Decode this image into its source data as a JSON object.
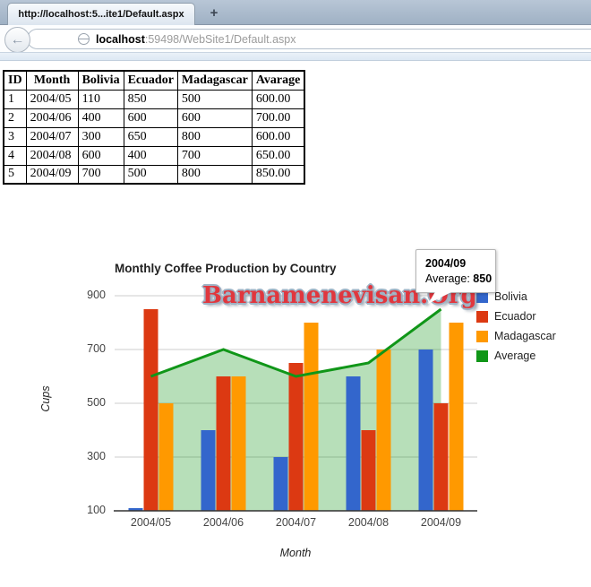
{
  "browser": {
    "tab_title": "http://localhost:5...ite1/Default.aspx",
    "new_tab_label": "+",
    "back_icon": "←",
    "url_host": "localhost",
    "url_rest": ":59498/WebSite1/Default.aspx"
  },
  "table": {
    "headers": [
      "ID",
      "Month",
      "Bolivia",
      "Ecuador",
      "Madagascar",
      "Avarage"
    ],
    "rows": [
      [
        "1",
        "2004/05",
        "110",
        "850",
        "500",
        "600.00"
      ],
      [
        "2",
        "2004/06",
        "400",
        "600",
        "600",
        "700.00"
      ],
      [
        "3",
        "2004/07",
        "300",
        "650",
        "800",
        "600.00"
      ],
      [
        "4",
        "2004/08",
        "600",
        "400",
        "700",
        "650.00"
      ],
      [
        "5",
        "2004/09",
        "700",
        "500",
        "800",
        "850.00"
      ]
    ]
  },
  "watermark_text": "Barnamenevisan.Org",
  "tooltip": {
    "title": "2004/09",
    "label": "Average:",
    "value": "850"
  },
  "chart_data": {
    "type": "bar",
    "subtype": "combo-bar-area-line",
    "title": "Monthly Coffee Production by Country",
    "xlabel": "Month",
    "ylabel": "Cups",
    "categories": [
      "2004/05",
      "2004/06",
      "2004/07",
      "2004/08",
      "2004/09"
    ],
    "series": [
      {
        "name": "Bolivia",
        "type": "bar",
        "color": "#3366cc",
        "values": [
          110,
          400,
          300,
          600,
          700
        ]
      },
      {
        "name": "Ecuador",
        "type": "bar",
        "color": "#dc3912",
        "values": [
          850,
          600,
          650,
          400,
          500
        ]
      },
      {
        "name": "Madagascar",
        "type": "bar",
        "color": "#ff9900",
        "values": [
          500,
          600,
          800,
          700,
          800
        ]
      },
      {
        "name": "Average",
        "type": "area",
        "color": "#109618",
        "area_fill": "rgba(16,150,24,0.3)",
        "values": [
          600,
          700,
          600,
          650,
          850
        ]
      }
    ],
    "yticks": [
      100,
      300,
      500,
      700,
      900
    ],
    "ylim": [
      100,
      900
    ],
    "grid": true,
    "gridline_color": "#cccccc",
    "baseline_color": "#333333",
    "legend_position": "right",
    "tick_color": "#444444"
  }
}
